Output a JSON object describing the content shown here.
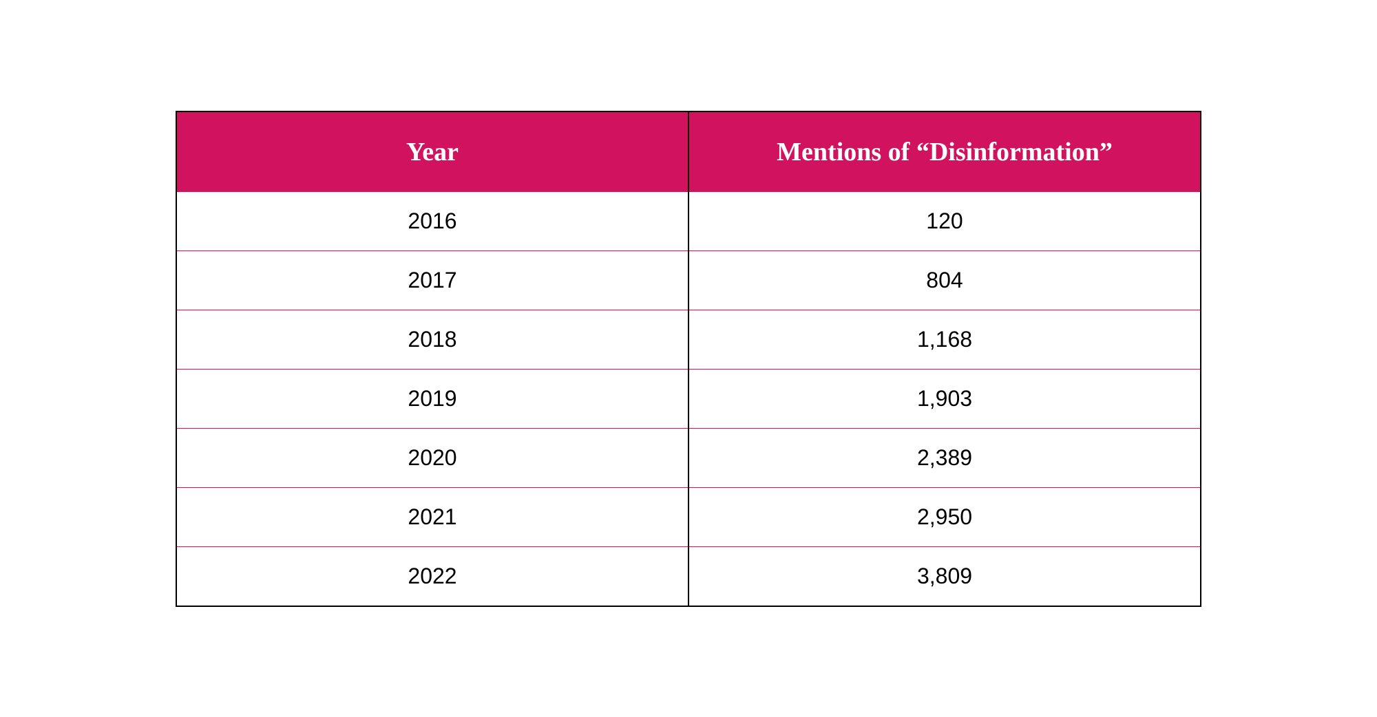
{
  "table": {
    "type": "table",
    "columns": [
      {
        "label": "Year",
        "key": "year",
        "width_pct": 50,
        "align": "center"
      },
      {
        "label": "Mentions of “Disinformation”",
        "key": "mentions",
        "width_pct": 50,
        "align": "center"
      }
    ],
    "rows": [
      {
        "year": "2016",
        "mentions": "120"
      },
      {
        "year": "2017",
        "mentions": "804"
      },
      {
        "year": "2018",
        "mentions": "1,168"
      },
      {
        "year": "2019",
        "mentions": "1,903"
      },
      {
        "year": "2020",
        "mentions": "2,389"
      },
      {
        "year": "2021",
        "mentions": "2,950"
      },
      {
        "year": "2022",
        "mentions": "3,809"
      }
    ],
    "header_bg_color": "#d1125e",
    "header_text_color": "#ffffff",
    "header_fontsize": 38,
    "header_font_family": "Georgia, serif",
    "header_font_weight": "bold",
    "cell_bg_color": "#ffffff",
    "cell_text_color": "#000000",
    "cell_fontsize": 32,
    "cell_font_family": "Arial, sans-serif",
    "outer_border_color": "#000000",
    "outer_border_width": 2,
    "row_divider_color": "#d1125e",
    "row_divider_width": 1,
    "column_divider_color": "#000000",
    "column_divider_width": 2,
    "background_color": "#ffffff"
  }
}
